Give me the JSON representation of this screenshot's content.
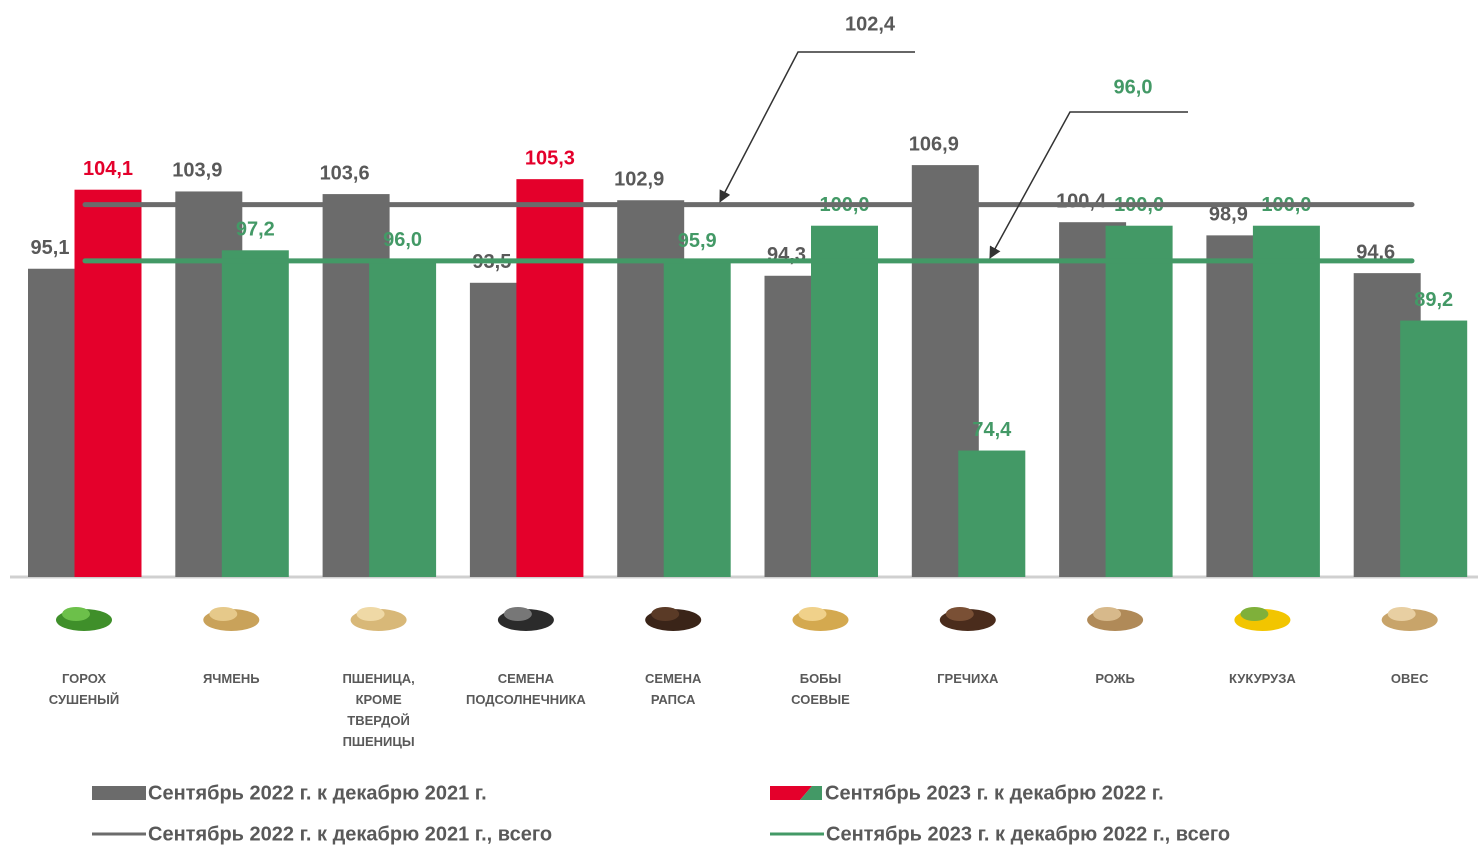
{
  "chart_data": {
    "type": "bar",
    "categories": [
      "ГОРОХ СУШЕНЫЙ",
      "ЯЧМЕНЬ",
      "ПШЕНИЦА, КРОМЕ ТВЕРДОЙ ПШЕНИЦЫ",
      "СЕМЕНА ПОДСОЛНЕЧНИКА",
      "СЕМЕНА РАПСА",
      "БОБЫ СОЕВЫЕ",
      "ГРЕЧИХА",
      "РОЖЬ",
      "КУКУРУЗА",
      "ОВЕС"
    ],
    "series": [
      {
        "name": "Сентябрь 2022 г. к декабрю 2021 г.",
        "color": "#6b6b6b",
        "values": [
          95.1,
          103.9,
          103.6,
          93.5,
          102.9,
          94.3,
          106.9,
          100.4,
          98.9,
          94.6
        ],
        "value_labels": [
          "95,1",
          "103,9",
          "103,6",
          "93,5",
          "102,9",
          "94,3",
          "106,9",
          "100,4",
          "98,9",
          "94,6"
        ]
      },
      {
        "name": "Сентябрь 2023 г. к декабрю 2022 г.",
        "colors": [
          "#e4002b",
          "#439966",
          "#439966",
          "#e4002b",
          "#439966",
          "#439966",
          "#439966",
          "#439966",
          "#439966",
          "#439966"
        ],
        "values": [
          104.1,
          97.2,
          96.0,
          105.3,
          95.9,
          100.0,
          74.4,
          100.0,
          100.0,
          89.2
        ],
        "value_labels": [
          "104,1",
          "97,2",
          "96,0",
          "105,3",
          "95,9",
          "100,0",
          "74,4",
          "100,0",
          "100,0",
          "89,2"
        ]
      }
    ],
    "reference_lines": [
      {
        "name": "Сентябрь 2022 г. к декабрю 2021 г., всего",
        "value": 102.4,
        "value_label": "102,4",
        "color": "#6b6b6b"
      },
      {
        "name": "Сентябрь 2023 г. к декабрю 2022 г., всего",
        "value": 96.0,
        "value_label": "96,0",
        "color": "#439966"
      }
    ],
    "ylim": [
      60,
      125.7
    ]
  }
}
